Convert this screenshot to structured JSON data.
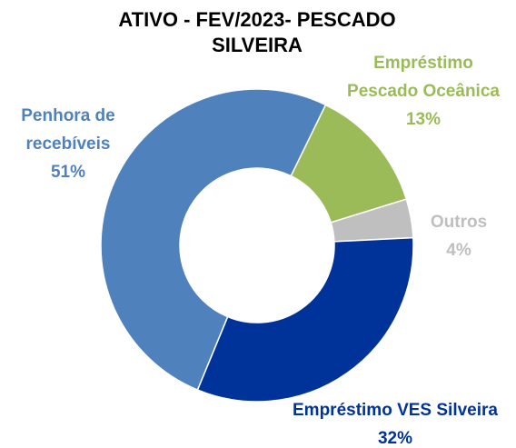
{
  "chart_data": {
    "type": "donut",
    "title": "ATIVO - FEV/2023- PESCADO SILVEIRA",
    "categories": [
      "Empréstimo Pescado Oceânica",
      "Outros",
      "Empréstimo VES Silveira",
      "Penhora de recebíveis"
    ],
    "values": [
      13,
      4,
      32,
      51
    ],
    "value_labels": [
      "13%",
      "4%",
      "32%",
      "51%"
    ],
    "colors": [
      "#9bbb59",
      "#bfbfbf",
      "#003399",
      "#4f81bd"
    ]
  }
}
